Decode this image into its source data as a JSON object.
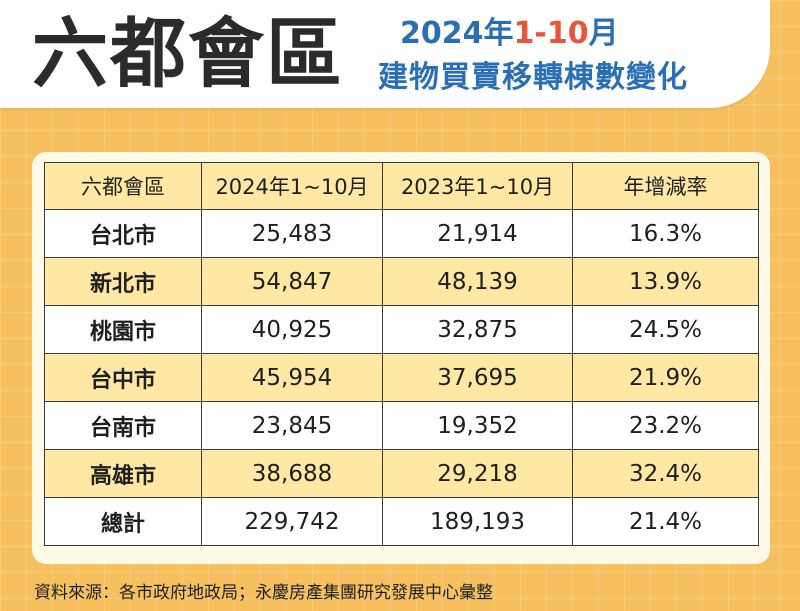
{
  "header": {
    "main_title": "六都會區",
    "subtitle_year": "2024年",
    "subtitle_range": "1-10",
    "subtitle_month": "月",
    "subtitle_line2": "建物買賣移轉棟數變化"
  },
  "table": {
    "columns": [
      "六都會區",
      "2024年1~10月",
      "2023年1~10月",
      "年增減率"
    ],
    "rows": [
      {
        "region": "台北市",
        "y2024": "25,483",
        "y2023": "21,914",
        "rate": "16.3%"
      },
      {
        "region": "新北市",
        "y2024": "54,847",
        "y2023": "48,139",
        "rate": "13.9%"
      },
      {
        "region": "桃園市",
        "y2024": "40,925",
        "y2023": "32,875",
        "rate": "24.5%"
      },
      {
        "region": "台中市",
        "y2024": "45,954",
        "y2023": "37,695",
        "rate": "21.9%"
      },
      {
        "region": "台南市",
        "y2024": "23,845",
        "y2023": "19,352",
        "rate": "23.2%"
      },
      {
        "region": "高雄市",
        "y2024": "38,688",
        "y2023": "29,218",
        "rate": "32.4%"
      },
      {
        "region": "總計",
        "y2024": "229,742",
        "y2023": "189,193",
        "rate": "21.4%"
      }
    ]
  },
  "footer": {
    "source": "資料來源：各市政府地政局；永慶房產集團研究發展中心彙整"
  },
  "colors": {
    "background": "#f6c05f",
    "title_blue": "#2a6fb5",
    "title_accent": "#e8553a",
    "row_shade": "#ffe8a3"
  }
}
